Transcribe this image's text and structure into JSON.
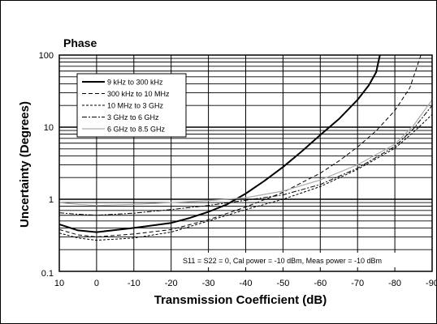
{
  "chart_data": {
    "type": "line",
    "title": "Phase",
    "xlabel": "Transmission Coefficient (dB)",
    "ylabel": "Uncertainty (Degrees)",
    "xlim": [
      10,
      -90
    ],
    "ylim": [
      0.1,
      100
    ],
    "yscale": "log",
    "xticks": [
      10,
      0,
      -10,
      -20,
      -30,
      -40,
      -50,
      -60,
      -70,
      -80,
      -90
    ],
    "xtick_labels": [
      "10",
      "0",
      "-10",
      "-20",
      "-30",
      "-40",
      "-50",
      "-60",
      "-70",
      "-80",
      "-90"
    ],
    "yticks": [
      0.1,
      1,
      10,
      100
    ],
    "ytick_labels": [
      "0.1",
      "1",
      "10",
      "100"
    ],
    "grid": true,
    "legend_position": "top-left",
    "annotation": "S11 = S22 = 0, Cal power = -10 dBm, Meas power = -10 dBm",
    "series": [
      {
        "name": "9 kHz to 300 kHz",
        "style": "solid-thick",
        "color": "#000000",
        "x": [
          10,
          5,
          0,
          -10,
          -20,
          -25,
          -30,
          -35,
          -40,
          -45,
          -50,
          -55,
          -60,
          -65,
          -70,
          -73,
          -75,
          -76
        ],
        "y": [
          0.45,
          0.37,
          0.35,
          0.4,
          0.47,
          0.55,
          0.67,
          0.85,
          1.2,
          1.8,
          2.8,
          4.6,
          7.8,
          13,
          24,
          38,
          58,
          100
        ]
      },
      {
        "name": "300 kHz to 10 MHz",
        "style": "dashed",
        "color": "#000000",
        "x": [
          10,
          5,
          0,
          -10,
          -20,
          -30,
          -40,
          -50,
          -60,
          -65,
          -70,
          -75,
          -80,
          -84,
          -87
        ],
        "y": [
          0.38,
          0.32,
          0.3,
          0.33,
          0.38,
          0.52,
          0.78,
          1.25,
          2.3,
          3.4,
          5.3,
          8.9,
          17,
          35,
          100
        ]
      },
      {
        "name": "10 MHz to 3 GHz",
        "style": "short-dashed",
        "color": "#000000",
        "x": [
          10,
          5,
          0,
          -10,
          -20,
          -30,
          -40,
          -50,
          -60,
          -70,
          -80,
          -85,
          -90
        ],
        "y": [
          0.34,
          0.29,
          0.27,
          0.29,
          0.35,
          0.5,
          0.72,
          1.0,
          1.5,
          2.6,
          5.1,
          8.5,
          15
        ]
      },
      {
        "name": "3 GHz to 6 GHz",
        "style": "dash-dot",
        "color": "#000000",
        "x": [
          10,
          5,
          0,
          -10,
          -20,
          -30,
          -40,
          -50,
          -60,
          -70,
          -80,
          -85,
          -90
        ],
        "y": [
          0.65,
          0.62,
          0.6,
          0.64,
          0.72,
          0.82,
          0.97,
          1.15,
          1.6,
          2.7,
          5.4,
          9.5,
          20
        ]
      },
      {
        "name": "6 GHz to 8.5 GHz",
        "style": "solid-thin",
        "color": "#aaaaaa",
        "x": [
          10,
          5,
          0,
          -10,
          -20,
          -30,
          -40,
          -50,
          -60,
          -70,
          -80,
          -85,
          -90
        ],
        "y": [
          0.9,
          0.85,
          0.82,
          0.85,
          0.9,
          0.96,
          1.05,
          1.3,
          1.85,
          3.0,
          5.8,
          10.5,
          24
        ]
      }
    ]
  }
}
